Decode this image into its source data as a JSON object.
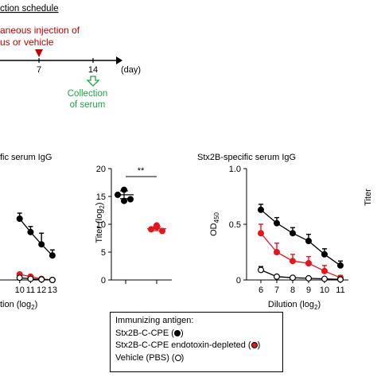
{
  "schedule": {
    "title": "ction schedule",
    "injection_lines": [
      "aneous injection of",
      "us or vehicle"
    ],
    "day_ticks": [
      {
        "day": 7,
        "label": "7"
      },
      {
        "day": 14,
        "label": "14"
      }
    ],
    "axis_unit": "(day)",
    "collection_lines": [
      "Collection",
      "of serum"
    ],
    "colors": {
      "injection": "#c00000",
      "collection": "#1aa64b",
      "text": "#000000"
    }
  },
  "chart_data": [
    {
      "id": "left-partial",
      "type": "line",
      "title": "fic serum IgG",
      "xlabel": "tion (log",
      "xlabel_sub": "2",
      "xlabel_close": ")",
      "x": [
        10,
        11,
        12,
        13
      ],
      "xlim": [
        8.2,
        13.3
      ],
      "ylim": [
        0,
        1.0
      ],
      "series": [
        {
          "key": "black",
          "color": "#000000",
          "fill": "#000000",
          "values": [
            0.55,
            0.43,
            0.32,
            0.22
          ],
          "errors": [
            0.05,
            0.05,
            0.1,
            0.05
          ]
        },
        {
          "key": "red",
          "color": "#e8141a",
          "fill": "#e8141a",
          "values": [
            0.05,
            0.03,
            0.01,
            0.0
          ],
          "errors": [
            0.0,
            0.0,
            0.0,
            0.0
          ]
        },
        {
          "key": "open",
          "color": "#000000",
          "fill": "#ffffff",
          "values": [
            0.02,
            0.01,
            0.005,
            0.0
          ],
          "errors": [
            0.0,
            0.0,
            0.0,
            0.0
          ]
        }
      ]
    },
    {
      "id": "titer",
      "type": "scatter",
      "ylabel": "Titer (log",
      "ylabel_sub": "2",
      "ylabel_close": ")",
      "ylim": [
        0,
        20
      ],
      "yticks": [
        0,
        5,
        10,
        15,
        20
      ],
      "significance": "**",
      "groups": [
        {
          "key": "black",
          "color": "#000000",
          "mean": 15.3,
          "sem": 0.7,
          "points": [
            16.2,
            15.3,
            14.5,
            14.2
          ]
        },
        {
          "key": "red",
          "color": "#e8141a",
          "mean": 9.2,
          "sem": 0.35,
          "points": [
            9.8,
            9.1,
            8.8,
            9.5
          ]
        }
      ]
    },
    {
      "id": "stx2b-right",
      "type": "line",
      "title": "Stx2B-specific serum IgG",
      "ylabel": "OD",
      "ylabel_sub": "450",
      "xlabel": "Dilution (log",
      "xlabel_sub": "2",
      "xlabel_close": ")",
      "x": [
        6,
        7,
        8,
        9,
        10,
        11
      ],
      "xticks": [
        6,
        7,
        8,
        9,
        10,
        11
      ],
      "ylim": [
        0,
        1.0
      ],
      "yticks": [
        0,
        0.5,
        1.0
      ],
      "ytick_labels": [
        "0",
        "0.5",
        "1.0"
      ],
      "series": [
        {
          "key": "black",
          "color": "#000000",
          "fill": "#000000",
          "values": [
            0.63,
            0.51,
            0.42,
            0.35,
            0.23,
            0.13
          ],
          "errors": [
            0.05,
            0.05,
            0.05,
            0.06,
            0.05,
            0.04
          ]
        },
        {
          "key": "red",
          "color": "#e8141a",
          "fill": "#e8141a",
          "values": [
            0.42,
            0.25,
            0.17,
            0.15,
            0.08,
            0.02
          ],
          "errors": [
            0.08,
            0.08,
            0.06,
            0.06,
            0.05,
            0.02
          ]
        },
        {
          "key": "open",
          "color": "#000000",
          "fill": "#ffffff",
          "values": [
            0.09,
            0.03,
            0.02,
            0.015,
            0.01,
            0.005
          ],
          "errors": [
            0.03,
            0.0,
            0.0,
            0.0,
            0.0,
            0.0
          ]
        }
      ]
    }
  ],
  "right_edge_partial_label": "Titer",
  "legend": {
    "heading": "Immunizing antigen:",
    "items": [
      {
        "label": "Stx2B-C-CPE (",
        "marker_fill": "#000000",
        "close": ")"
      },
      {
        "label": "Stx2B-C-CPE endotoxin-depleted (",
        "marker_fill": "#e8141a",
        "close": ")"
      },
      {
        "label": "Vehicle (PBS) (",
        "marker_fill": "#ffffff",
        "close": ")"
      }
    ]
  }
}
